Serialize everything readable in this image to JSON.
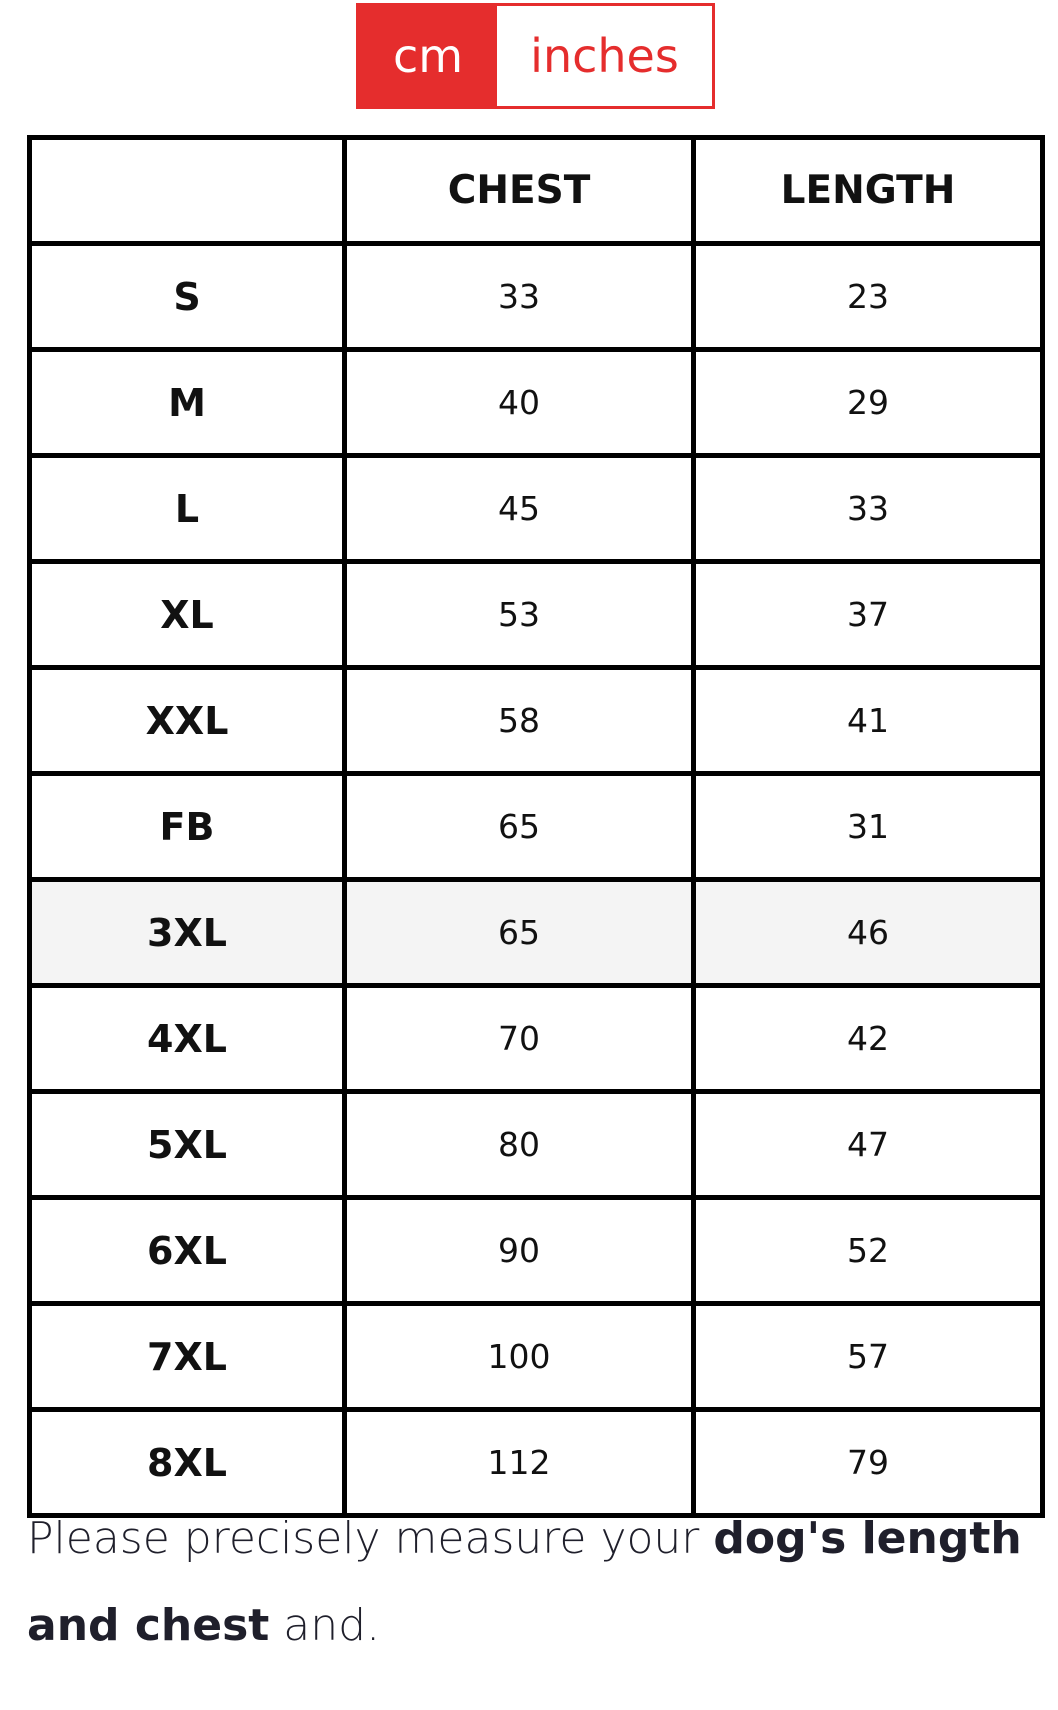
{
  "unit_toggle": {
    "options": [
      "cm",
      "inches"
    ],
    "selected": "cm",
    "accent": "#e52d2d"
  },
  "table": {
    "headers": [
      "",
      "CHEST",
      "LENGTH"
    ],
    "rows": [
      [
        "S",
        "33",
        "23"
      ],
      [
        "M",
        "40",
        "29"
      ],
      [
        "L",
        "45",
        "33"
      ],
      [
        "XL",
        "53",
        "37"
      ],
      [
        "XXL",
        "58",
        "41"
      ],
      [
        "FB",
        "65",
        "31"
      ],
      [
        "3XL",
        "65",
        "46"
      ],
      [
        "4XL",
        "70",
        "42"
      ],
      [
        "5XL",
        "80",
        "47"
      ],
      [
        "6XL",
        "90",
        "52"
      ],
      [
        "7XL",
        "100",
        "57"
      ],
      [
        "8XL",
        "112",
        "79"
      ]
    ],
    "highlighted_row": "3XL"
  },
  "note": {
    "part1": "Please precisely measure your ",
    "bold1": "dog's length and chest",
    "part2": " and."
  }
}
